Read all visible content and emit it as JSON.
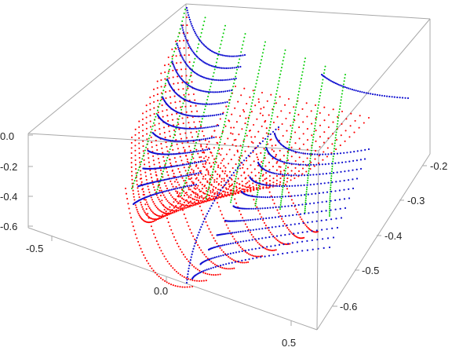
{
  "chart_data": {
    "type": "scatter3d",
    "title": "",
    "xlabel": "",
    "ylabel": "",
    "zlabel": "",
    "x_ticks": [
      "-0.5",
      "0.0",
      "0.5"
    ],
    "y_ticks": [
      "-0.2",
      "-0.3",
      "-0.4",
      "-0.5",
      "-0.6"
    ],
    "z_ticks": [
      "0.0",
      "-0.2",
      "-0.4",
      "-0.6"
    ],
    "xlim": [
      -0.6,
      0.55
    ],
    "ylim": [
      -0.68,
      -0.17
    ],
    "zlim": [
      -0.65,
      0.02
    ],
    "box": true,
    "grid": false,
    "series": [
      {
        "color": "#ff0000",
        "style": "dotted",
        "description_points": 0,
        "surface": "parabolic trough, fine dotted mesh"
      },
      {
        "color": "#00cc00",
        "style": "dotted",
        "surface": "ribbon strands over trough"
      },
      {
        "color": "#0000dd",
        "style": "dotted",
        "surface": "cross-section curves over trough"
      }
    ],
    "colors": {
      "red": "#ff0000",
      "green": "#00cc00",
      "blue": "#1010d0",
      "box": "#a8a8a8"
    }
  }
}
